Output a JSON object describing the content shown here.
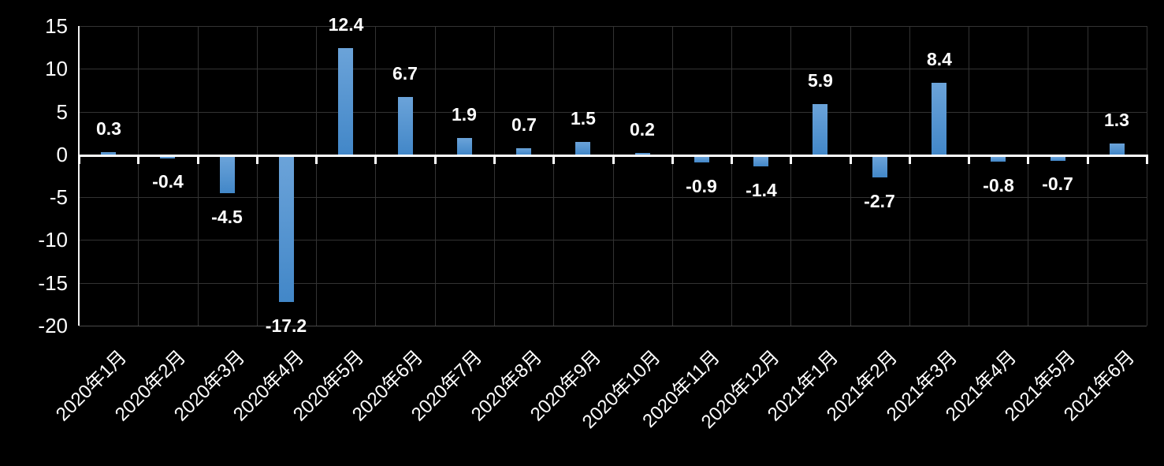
{
  "chart_data": {
    "type": "bar",
    "title": "",
    "xlabel": "",
    "ylabel": "",
    "categories": [
      "2020年1月",
      "2020年2月",
      "2020年3月",
      "2020年4月",
      "2020年5月",
      "2020年6月",
      "2020年7月",
      "2020年8月",
      "2020年9月",
      "2020年10月",
      "2020年11月",
      "2020年12月",
      "2021年1月",
      "2021年2月",
      "2021年3月",
      "2021年4月",
      "2021年5月",
      "2021年6月"
    ],
    "values": [
      0.3,
      -0.4,
      -4.5,
      -17.2,
      12.4,
      6.7,
      1.9,
      0.7,
      1.5,
      0.2,
      -0.9,
      -1.4,
      5.9,
      -2.7,
      8.4,
      -0.8,
      -0.7,
      1.3
    ],
    "data_labels": [
      "0.3",
      "-0.4",
      "-4.5",
      "-17.2",
      "12.4",
      "6.7",
      "1.9",
      "0.7",
      "1.5",
      "0.2",
      "-0.9",
      "-1.4",
      "5.9",
      "-2.7",
      "8.4",
      "-0.8",
      "-0.7",
      "1.3"
    ],
    "ylim": [
      -20,
      15
    ],
    "yticks": [
      15,
      10,
      5,
      0,
      -5,
      -10,
      -15,
      -20
    ],
    "ytick_labels": [
      "15",
      "10",
      "5",
      "0",
      "-5",
      "-10",
      "-15",
      "-20"
    ],
    "grid": true,
    "legend_position": "none",
    "x_label_rotation_deg": 45,
    "colors": {
      "background": "#000000",
      "bar_gradient_top": "#6ba3d9",
      "bar_gradient_bottom": "#4287c8",
      "gridline": "#333333",
      "bottom_border": "#4a4a4a",
      "axis_line": "#f2f2f2",
      "zero_line": "#ffffff",
      "text": "#ffffff"
    }
  }
}
